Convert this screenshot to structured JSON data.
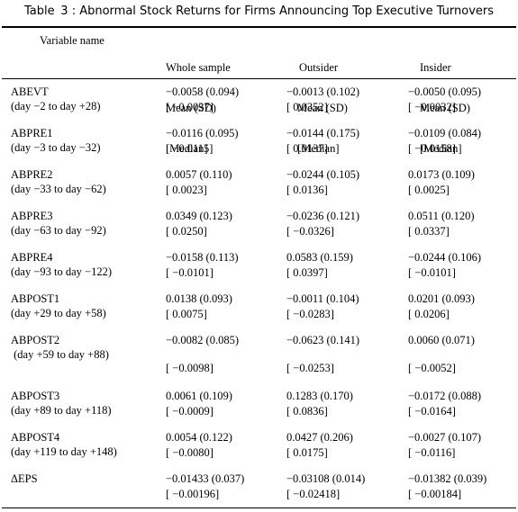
{
  "table": {
    "title": "Table  3 : Abnormal Stock Returns for Firms Announcing Top Executive Turnovers",
    "header": {
      "variable": "Variable name",
      "columns": [
        [
          "Whole sample",
          "Mean (SD)",
          "[Median]"
        ],
        [
          "Outsider",
          "Mean (SD)",
          "[Median]"
        ],
        [
          "Insider",
          "Mean (SD)",
          "[Median]"
        ]
      ]
    },
    "rows": [
      {
        "name": [
          "ABEVT",
          "(day −2 to day +28)"
        ],
        "cells": [
          [
            "−0.0058 (0.094)",
            "[ −0.0037]"
          ],
          [
            "−0.0013 (0.102)",
            "[ 0.0352]"
          ],
          [
            "−0.0050 (0.095)",
            "[ −0.0032]"
          ]
        ]
      },
      {
        "name": [
          "ABPRE1",
          "(day −3 to day −32)"
        ],
        "cells": [
          [
            "−0.0116 (0.095)",
            "[ −0.0115]"
          ],
          [
            "−0.0144 (0.175)",
            "[ 0.0137]"
          ],
          [
            "−0.0109 (0.084)",
            "[ −0.0158]"
          ]
        ]
      },
      {
        "name": [
          "ABPRE2",
          "(day −33 to day −62)"
        ],
        "cells": [
          [
            "0.0057 (0.110)",
            "[ 0.0023]"
          ],
          [
            "−0.0244 (0.105)",
            "[ 0.0136]"
          ],
          [
            "0.0173 (0.109)",
            "[ 0.0025]"
          ]
        ]
      },
      {
        "name": [
          "ABPRE3",
          "(day −63 to day −92)"
        ],
        "cells": [
          [
            "0.0349 (0.123)",
            "[ 0.0250]"
          ],
          [
            "−0.0236 (0.121)",
            "[ −0.0326]"
          ],
          [
            "0.0511 (0.120)",
            "[ 0.0337]"
          ]
        ]
      },
      {
        "name": [
          "ABPRE4",
          "(day −93 to day −122)"
        ],
        "cells": [
          [
            "−0.0158 (0.113)",
            "[ −0.0101]"
          ],
          [
            "0.0583 (0.159)",
            "[ 0.0397]"
          ],
          [
            "−0.0244 (0.106)",
            "[ −0.0101]"
          ]
        ]
      },
      {
        "name": [
          "ABPOST1",
          "(day +29 to day +58)"
        ],
        "cells": [
          [
            "0.0138 (0.093)",
            "[ 0.0075]"
          ],
          [
            "−0.0011 (0.104)",
            "[ −0.0283]"
          ],
          [
            "0.0201 (0.093)",
            "[ 0.0206]"
          ]
        ]
      },
      {
        "name": [
          "ABPOST2",
          " (day +59 to day +88)"
        ],
        "cells": [
          [
            "−0.0082 (0.085)",
            "[ −0.0098]"
          ],
          [
            "−0.0623 (0.141)",
            "[ −0.0253]"
          ],
          [
            "0.0060 (0.071)",
            "[ −0.0052]"
          ]
        ]
      },
      {
        "name": [
          "ABPOST3",
          "(day +89 to day +118)"
        ],
        "cells": [
          [
            "0.0061 (0.109)",
            "[ −0.0009]"
          ],
          [
            "0.1283 (0.170)",
            "[ 0.0836]"
          ],
          [
            "−0.0172 (0.088)",
            "[ −0.0164]"
          ]
        ]
      },
      {
        "name": [
          "ABPOST4",
          "(day +119 to day +148)"
        ],
        "cells": [
          [
            "0.0054 (0.122)",
            "[ −0.0080]"
          ],
          [
            "0.0427 (0.206)",
            "[ 0.0175]"
          ],
          [
            "−0.0027 (0.107)",
            "[ −0.0116]"
          ]
        ]
      },
      {
        "name": [
          "ΔEPS",
          ""
        ],
        "cells": [
          [
            "−0.01433 (0.037)",
            "[ −0.00196]"
          ],
          [
            "−0.03108 (0.014)",
            "[ −0.02418]"
          ],
          [
            "−0.01382 (0.039)",
            "[ −0.00184]"
          ]
        ]
      }
    ]
  }
}
